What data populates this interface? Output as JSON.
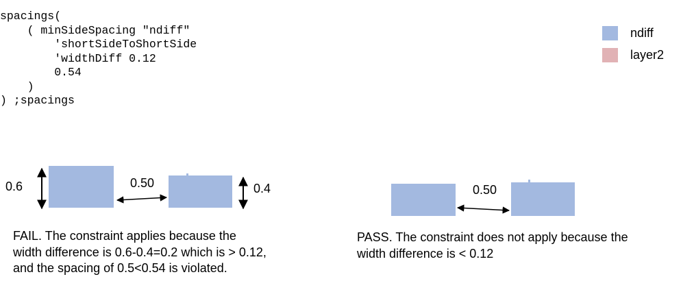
{
  "code_lines": [
    "spacings(",
    "    ( minSideSpacing \"ndiff\"",
    "        'shortSideToShortSide",
    "        'widthDiff 0.12",
    "        0.54",
    "    )",
    ") ;spacings"
  ],
  "legend": [
    {
      "label": "ndiff",
      "color": "#a3b9e0"
    },
    {
      "label": "layer2",
      "color": "#e1b2b5"
    }
  ],
  "fail_case": {
    "left_height_label": "0.6",
    "right_height_label": "0.4",
    "spacing_label": "0.50",
    "caption_lines": [
      "FAIL. The constraint applies because the",
      "width difference is 0.6-0.4=0.2 which is > 0.12,",
      "and the spacing of 0.5<0.54 is violated."
    ]
  },
  "pass_case": {
    "spacing_label": "0.50",
    "caption_lines": [
      "PASS. The constraint does not apply because the",
      "width difference is < 0.12"
    ]
  },
  "colors": {
    "shape_fill": "#a3b9e0",
    "layer2_fill": "#e1b2b5",
    "arrow": "#000000"
  }
}
